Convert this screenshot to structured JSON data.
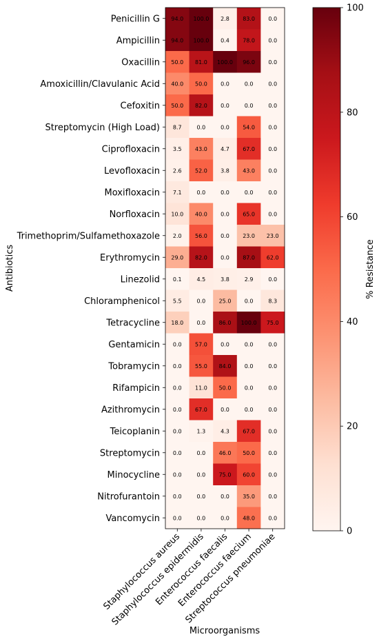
{
  "chart_data": {
    "type": "heatmap",
    "xlabel": "Microorganisms",
    "ylabel": "Antibiotics",
    "colorbar_label": "% Resistance",
    "colorbar_ticks": [
      0,
      20,
      40,
      60,
      80,
      100
    ],
    "value_range": [
      0,
      100
    ],
    "colormap": "Reds",
    "columns": [
      "Staphylococcus aureus",
      "Staphylococcus epidermidis",
      "Enterococcus faecalis",
      "Enterococcus faecium",
      "Streptococcus pneumoniae"
    ],
    "rows": [
      "Penicillin G",
      "Ampicillin",
      "Oxacillin",
      "Amoxicillin/Clavulanic Acid",
      "Cefoxitin",
      "Streptomycin (High Load)",
      "Ciprofloxacin",
      "Levofloxacin",
      "Moxifloxacin",
      "Norfloxacin",
      "Trimethoprim/Sulfamethoxazole",
      "Erythromycin",
      "Linezolid",
      "Chloramphenicol",
      "Tetracycline",
      "Gentamicin",
      "Tobramycin",
      "Rifampicin",
      "Azithromycin",
      "Teicoplanin",
      "Streptomycin",
      "Minocycline",
      "Nitrofurantoin",
      "Vancomycin"
    ],
    "values": [
      [
        94.0,
        100.0,
        2.8,
        83.0,
        0.0
      ],
      [
        94.0,
        100.0,
        0.4,
        78.0,
        0.0
      ],
      [
        50.0,
        81.0,
        100.0,
        96.0,
        0.0
      ],
      [
        40.0,
        50.0,
        0.0,
        0.0,
        0.0
      ],
      [
        50.0,
        82.0,
        0.0,
        0.0,
        0.0
      ],
      [
        8.7,
        0.0,
        0.0,
        54.0,
        0.0
      ],
      [
        3.5,
        43.0,
        4.7,
        67.0,
        0.0
      ],
      [
        2.6,
        52.0,
        3.8,
        43.0,
        0.0
      ],
      [
        7.1,
        0.0,
        0.0,
        0.0,
        0.0
      ],
      [
        10.0,
        40.0,
        0.0,
        65.0,
        0.0
      ],
      [
        2.0,
        56.0,
        0.0,
        23.0,
        23.0
      ],
      [
        29.0,
        82.0,
        0.0,
        87.0,
        62.0
      ],
      [
        0.1,
        4.5,
        3.8,
        2.9,
        0.0
      ],
      [
        5.5,
        0.0,
        25.0,
        0.0,
        8.3
      ],
      [
        18.0,
        0.0,
        86.0,
        100.0,
        75.0
      ],
      [
        0.0,
        57.0,
        0.0,
        0.0,
        0.0
      ],
      [
        0.0,
        55.0,
        84.0,
        0.0,
        0.0
      ],
      [
        0.0,
        11.0,
        50.0,
        0.0,
        0.0
      ],
      [
        0.0,
        67.0,
        0.0,
        0.0,
        0.0
      ],
      [
        0.0,
        1.3,
        4.3,
        67.0,
        0.0
      ],
      [
        0.0,
        0.0,
        46.0,
        50.0,
        0.0
      ],
      [
        0.0,
        0.0,
        75.0,
        60.0,
        0.0
      ],
      [
        0.0,
        0.0,
        0.0,
        35.0,
        0.0
      ],
      [
        0.0,
        0.0,
        0.0,
        48.0,
        0.0
      ]
    ]
  }
}
